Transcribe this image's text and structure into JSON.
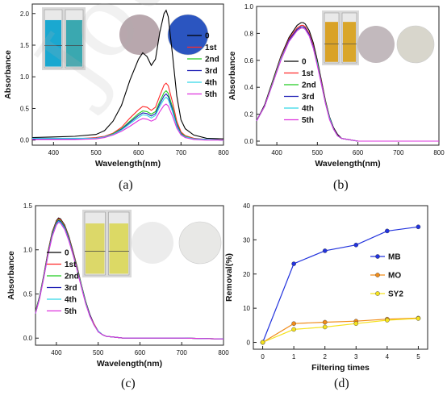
{
  "watermark": "Journal Pre-proof",
  "panel_labels": [
    "(a)",
    "(b)",
    "(c)",
    "(d)"
  ],
  "colors": {
    "0": "#000000",
    "1st": "#ff2a2a",
    "2nd": "#22cc22",
    "3rd": "#1c1cb4",
    "4th": "#33d6e6",
    "5th": "#dd33dd",
    "MB": "#2233dd",
    "MO": "#f08c1a",
    "SY2": "#f5e21e"
  },
  "chart_data": [
    {
      "id": "a",
      "type": "line",
      "xlabel": "Wavelength(nm)",
      "ylabel": "Absorbance",
      "xlim": [
        350,
        800
      ],
      "ylim": [
        -0.08,
        2.15
      ],
      "xticks": [
        400,
        500,
        600,
        700,
        800
      ],
      "yticks": [
        0.0,
        0.5,
        1.0,
        1.5,
        2.0
      ],
      "ytick_labels": [
        "0.0",
        "0.5",
        "1.0",
        "1.5",
        "2.0"
      ],
      "legend": "top-right",
      "x": [
        350,
        400,
        450,
        500,
        520,
        540,
        560,
        580,
        600,
        610,
        620,
        630,
        640,
        650,
        660,
        665,
        670,
        680,
        690,
        700,
        710,
        730,
        760,
        800
      ],
      "series": [
        {
          "name": "0",
          "values": [
            0.04,
            0.05,
            0.06,
            0.09,
            0.15,
            0.3,
            0.55,
            0.95,
            1.28,
            1.38,
            1.32,
            1.18,
            1.28,
            1.7,
            2.0,
            2.05,
            1.95,
            1.35,
            0.7,
            0.32,
            0.18,
            0.08,
            0.03,
            0.02
          ]
        },
        {
          "name": "1st",
          "values": [
            0.02,
            0.02,
            0.02,
            0.04,
            0.06,
            0.11,
            0.2,
            0.35,
            0.48,
            0.53,
            0.52,
            0.47,
            0.52,
            0.7,
            0.87,
            0.9,
            0.86,
            0.6,
            0.3,
            0.13,
            0.07,
            0.03,
            0.01,
            0.0
          ]
        },
        {
          "name": "2nd",
          "values": [
            0.02,
            0.02,
            0.02,
            0.03,
            0.05,
            0.1,
            0.18,
            0.3,
            0.42,
            0.46,
            0.45,
            0.41,
            0.45,
            0.61,
            0.75,
            0.78,
            0.74,
            0.52,
            0.26,
            0.11,
            0.06,
            0.02,
            0.01,
            0.0
          ]
        },
        {
          "name": "3rd",
          "values": [
            0.02,
            0.02,
            0.02,
            0.03,
            0.05,
            0.09,
            0.17,
            0.28,
            0.39,
            0.43,
            0.42,
            0.38,
            0.42,
            0.57,
            0.7,
            0.73,
            0.69,
            0.48,
            0.24,
            0.1,
            0.05,
            0.02,
            0.01,
            0.0
          ]
        },
        {
          "name": "4th",
          "values": [
            0.03,
            0.03,
            0.03,
            0.03,
            0.05,
            0.09,
            0.16,
            0.26,
            0.36,
            0.4,
            0.39,
            0.35,
            0.39,
            0.53,
            0.65,
            0.68,
            0.64,
            0.45,
            0.22,
            0.09,
            0.05,
            0.02,
            0.01,
            0.0
          ]
        },
        {
          "name": "5th",
          "values": [
            0.01,
            0.01,
            0.01,
            0.02,
            0.04,
            0.08,
            0.14,
            0.22,
            0.31,
            0.34,
            0.33,
            0.3,
            0.33,
            0.45,
            0.55,
            0.57,
            0.54,
            0.38,
            0.19,
            0.08,
            0.04,
            0.01,
            0.0,
            0.0
          ]
        }
      ]
    },
    {
      "id": "b",
      "type": "line",
      "xlabel": "Wavelength(nm)",
      "ylabel": "Absorbance",
      "xlim": [
        350,
        800
      ],
      "ylim": [
        -0.03,
        1.0
      ],
      "xticks": [
        400,
        500,
        600,
        700,
        800
      ],
      "yticks": [
        0.0,
        0.2,
        0.4,
        0.6,
        0.8,
        1.0
      ],
      "ytick_labels": [
        "0.0",
        "0.2",
        "0.4",
        "0.6",
        "0.8",
        "1.0"
      ],
      "legend": "top-left",
      "x": [
        350,
        370,
        390,
        410,
        430,
        450,
        460,
        465,
        470,
        480,
        490,
        500,
        510,
        520,
        530,
        540,
        550,
        560,
        580,
        600,
        650,
        700,
        750,
        800
      ],
      "series": [
        {
          "name": "0",
          "values": [
            0.15,
            0.27,
            0.45,
            0.63,
            0.77,
            0.86,
            0.88,
            0.88,
            0.87,
            0.82,
            0.73,
            0.6,
            0.45,
            0.3,
            0.18,
            0.1,
            0.05,
            0.02,
            0.01,
            0.0,
            0.0,
            0.0,
            0.0,
            0.0
          ]
        },
        {
          "name": "1st",
          "values": [
            0.15,
            0.26,
            0.44,
            0.62,
            0.76,
            0.84,
            0.86,
            0.86,
            0.85,
            0.8,
            0.71,
            0.58,
            0.44,
            0.29,
            0.17,
            0.09,
            0.04,
            0.02,
            0.01,
            0.0,
            0.0,
            0.0,
            0.0,
            0.0
          ]
        },
        {
          "name": "2nd",
          "values": [
            0.15,
            0.26,
            0.44,
            0.61,
            0.75,
            0.83,
            0.85,
            0.85,
            0.84,
            0.79,
            0.7,
            0.58,
            0.43,
            0.29,
            0.17,
            0.09,
            0.04,
            0.02,
            0.01,
            0.0,
            0.0,
            0.0,
            0.0,
            0.0
          ]
        },
        {
          "name": "3rd",
          "values": [
            0.15,
            0.26,
            0.43,
            0.61,
            0.75,
            0.83,
            0.85,
            0.85,
            0.84,
            0.79,
            0.7,
            0.57,
            0.43,
            0.28,
            0.17,
            0.09,
            0.04,
            0.02,
            0.01,
            0.0,
            0.0,
            0.0,
            0.0,
            0.0
          ]
        },
        {
          "name": "4th",
          "values": [
            0.15,
            0.26,
            0.43,
            0.61,
            0.74,
            0.82,
            0.84,
            0.84,
            0.83,
            0.78,
            0.69,
            0.57,
            0.42,
            0.28,
            0.17,
            0.09,
            0.04,
            0.02,
            0.01,
            0.0,
            0.0,
            0.0,
            0.0,
            0.0
          ]
        },
        {
          "name": "5th",
          "values": [
            0.15,
            0.26,
            0.43,
            0.6,
            0.74,
            0.82,
            0.84,
            0.84,
            0.83,
            0.78,
            0.69,
            0.56,
            0.42,
            0.28,
            0.16,
            0.09,
            0.04,
            0.02,
            0.01,
            0.0,
            0.0,
            0.0,
            0.0,
            0.0
          ]
        }
      ]
    },
    {
      "id": "c",
      "type": "line",
      "xlabel": "Wavelength(nm)",
      "ylabel": "Absorbance",
      "xlim": [
        350,
        800
      ],
      "ylim": [
        -0.08,
        1.5
      ],
      "xticks": [
        400,
        500,
        600,
        700,
        800
      ],
      "yticks": [
        0.0,
        0.5,
        1.0,
        1.5
      ],
      "ytick_labels": [
        "0.0",
        "0.5",
        "1.0",
        "1.5"
      ],
      "legend": "left",
      "x": [
        350,
        360,
        370,
        380,
        390,
        400,
        405,
        410,
        420,
        430,
        440,
        450,
        460,
        470,
        480,
        490,
        500,
        510,
        520,
        540,
        560,
        600,
        700,
        800
      ],
      "series": [
        {
          "name": "0",
          "values": [
            0.3,
            0.48,
            0.72,
            0.98,
            1.2,
            1.33,
            1.36,
            1.35,
            1.28,
            1.15,
            0.98,
            0.8,
            0.6,
            0.42,
            0.27,
            0.16,
            0.08,
            0.04,
            0.02,
            0.01,
            0.0,
            0.0,
            0.0,
            -0.01
          ]
        },
        {
          "name": "1st",
          "values": [
            0.29,
            0.47,
            0.71,
            0.97,
            1.19,
            1.32,
            1.35,
            1.34,
            1.27,
            1.14,
            0.97,
            0.79,
            0.59,
            0.41,
            0.26,
            0.16,
            0.08,
            0.04,
            0.02,
            0.01,
            0.0,
            0.0,
            0.0,
            -0.01
          ]
        },
        {
          "name": "2nd",
          "values": [
            0.29,
            0.47,
            0.71,
            0.96,
            1.18,
            1.31,
            1.34,
            1.33,
            1.26,
            1.13,
            0.96,
            0.78,
            0.59,
            0.41,
            0.26,
            0.15,
            0.08,
            0.04,
            0.02,
            0.01,
            0.0,
            0.0,
            0.0,
            -0.01
          ]
        },
        {
          "name": "3rd",
          "values": [
            0.28,
            0.46,
            0.7,
            0.95,
            1.17,
            1.3,
            1.33,
            1.32,
            1.25,
            1.12,
            0.95,
            0.77,
            0.58,
            0.4,
            0.26,
            0.15,
            0.08,
            0.04,
            0.02,
            0.01,
            0.0,
            0.0,
            0.0,
            -0.01
          ]
        },
        {
          "name": "4th",
          "values": [
            0.28,
            0.46,
            0.69,
            0.94,
            1.16,
            1.29,
            1.32,
            1.31,
            1.24,
            1.11,
            0.94,
            0.77,
            0.58,
            0.4,
            0.25,
            0.15,
            0.08,
            0.04,
            0.02,
            0.01,
            0.0,
            0.0,
            0.0,
            -0.01
          ]
        },
        {
          "name": "5th",
          "values": [
            0.28,
            0.45,
            0.69,
            0.94,
            1.15,
            1.28,
            1.31,
            1.3,
            1.23,
            1.1,
            0.94,
            0.76,
            0.57,
            0.39,
            0.25,
            0.15,
            0.07,
            0.04,
            0.02,
            0.01,
            0.0,
            0.0,
            0.0,
            -0.01
          ]
        }
      ]
    },
    {
      "id": "d",
      "type": "line",
      "xlabel": "Filtering times",
      "ylabel": "Removal(%)",
      "xlim": [
        -0.3,
        5.3
      ],
      "ylim": [
        -2,
        40
      ],
      "xticks": [
        0,
        1,
        2,
        3,
        4,
        5
      ],
      "yticks": [
        0,
        10,
        20,
        30,
        40
      ],
      "ytick_labels": [
        "0",
        "10",
        "20",
        "30",
        "40"
      ],
      "legend": "right",
      "markers": true,
      "x": [
        0,
        1,
        2,
        3,
        4,
        5
      ],
      "series": [
        {
          "name": "MB",
          "values": [
            0,
            23,
            26.8,
            28.5,
            32.6,
            33.8
          ]
        },
        {
          "name": "MO",
          "values": [
            0,
            5.5,
            5.9,
            6.2,
            6.8,
            7.1
          ]
        },
        {
          "name": "SY2",
          "values": [
            0,
            3.8,
            4.5,
            5.5,
            6.5,
            7.0
          ]
        }
      ]
    }
  ],
  "insets": {
    "a": {
      "vials": [
        "#1aa8d0",
        "#3aa8b0"
      ],
      "discs": [
        "#b8a7ad",
        "#2b55c0"
      ]
    },
    "b": {
      "vials": [
        "#d9a227",
        "#d9a62a"
      ],
      "discs": [
        "#c2b9bd",
        "#d8d6cc"
      ]
    },
    "c": {
      "vials": [
        "#dcd869",
        "#dcd965"
      ],
      "discs": [
        "#ececec",
        "#e8e8e6"
      ]
    }
  }
}
